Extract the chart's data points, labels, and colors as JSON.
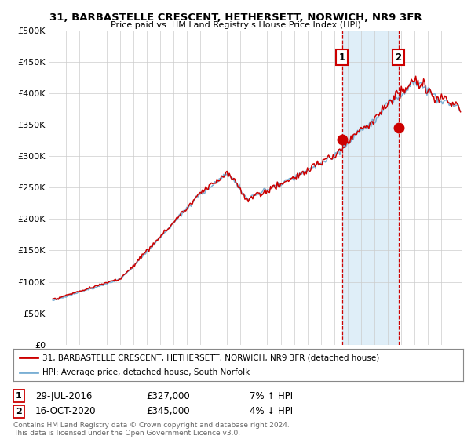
{
  "title": "31, BARBASTELLE CRESCENT, HETHERSETT, NORWICH, NR9 3FR",
  "subtitle": "Price paid vs. HM Land Registry's House Price Index (HPI)",
  "ylabel_ticks": [
    "£0",
    "£50K",
    "£100K",
    "£150K",
    "£200K",
    "£250K",
    "£300K",
    "£350K",
    "£400K",
    "£450K",
    "£500K"
  ],
  "ytick_vals": [
    0,
    50000,
    100000,
    150000,
    200000,
    250000,
    300000,
    350000,
    400000,
    450000,
    500000
  ],
  "ylim": [
    0,
    500000
  ],
  "xlim_start": 1994.75,
  "xlim_end": 2025.5,
  "marker1_x": 2016.57,
  "marker1_y": 327000,
  "marker2_x": 2020.79,
  "marker2_y": 345000,
  "sale1_date": "29-JUL-2016",
  "sale1_price": "£327,000",
  "sale1_hpi": "7% ↑ HPI",
  "sale2_date": "16-OCT-2020",
  "sale2_price": "£345,000",
  "sale2_hpi": "4% ↓ HPI",
  "legend_line1": "31, BARBASTELLE CRESCENT, HETHERSETT, NORWICH, NR9 3FR (detached house)",
  "legend_line2": "HPI: Average price, detached house, South Norfolk",
  "footer": "Contains HM Land Registry data © Crown copyright and database right 2024.\nThis data is licensed under the Open Government Licence v3.0.",
  "line_color_red": "#cc0000",
  "line_color_blue": "#7aafd4",
  "bg_color": "#ffffff",
  "grid_color": "#cccccc",
  "marker_box_color": "#cc0000",
  "shade_color": "#d8eaf7"
}
